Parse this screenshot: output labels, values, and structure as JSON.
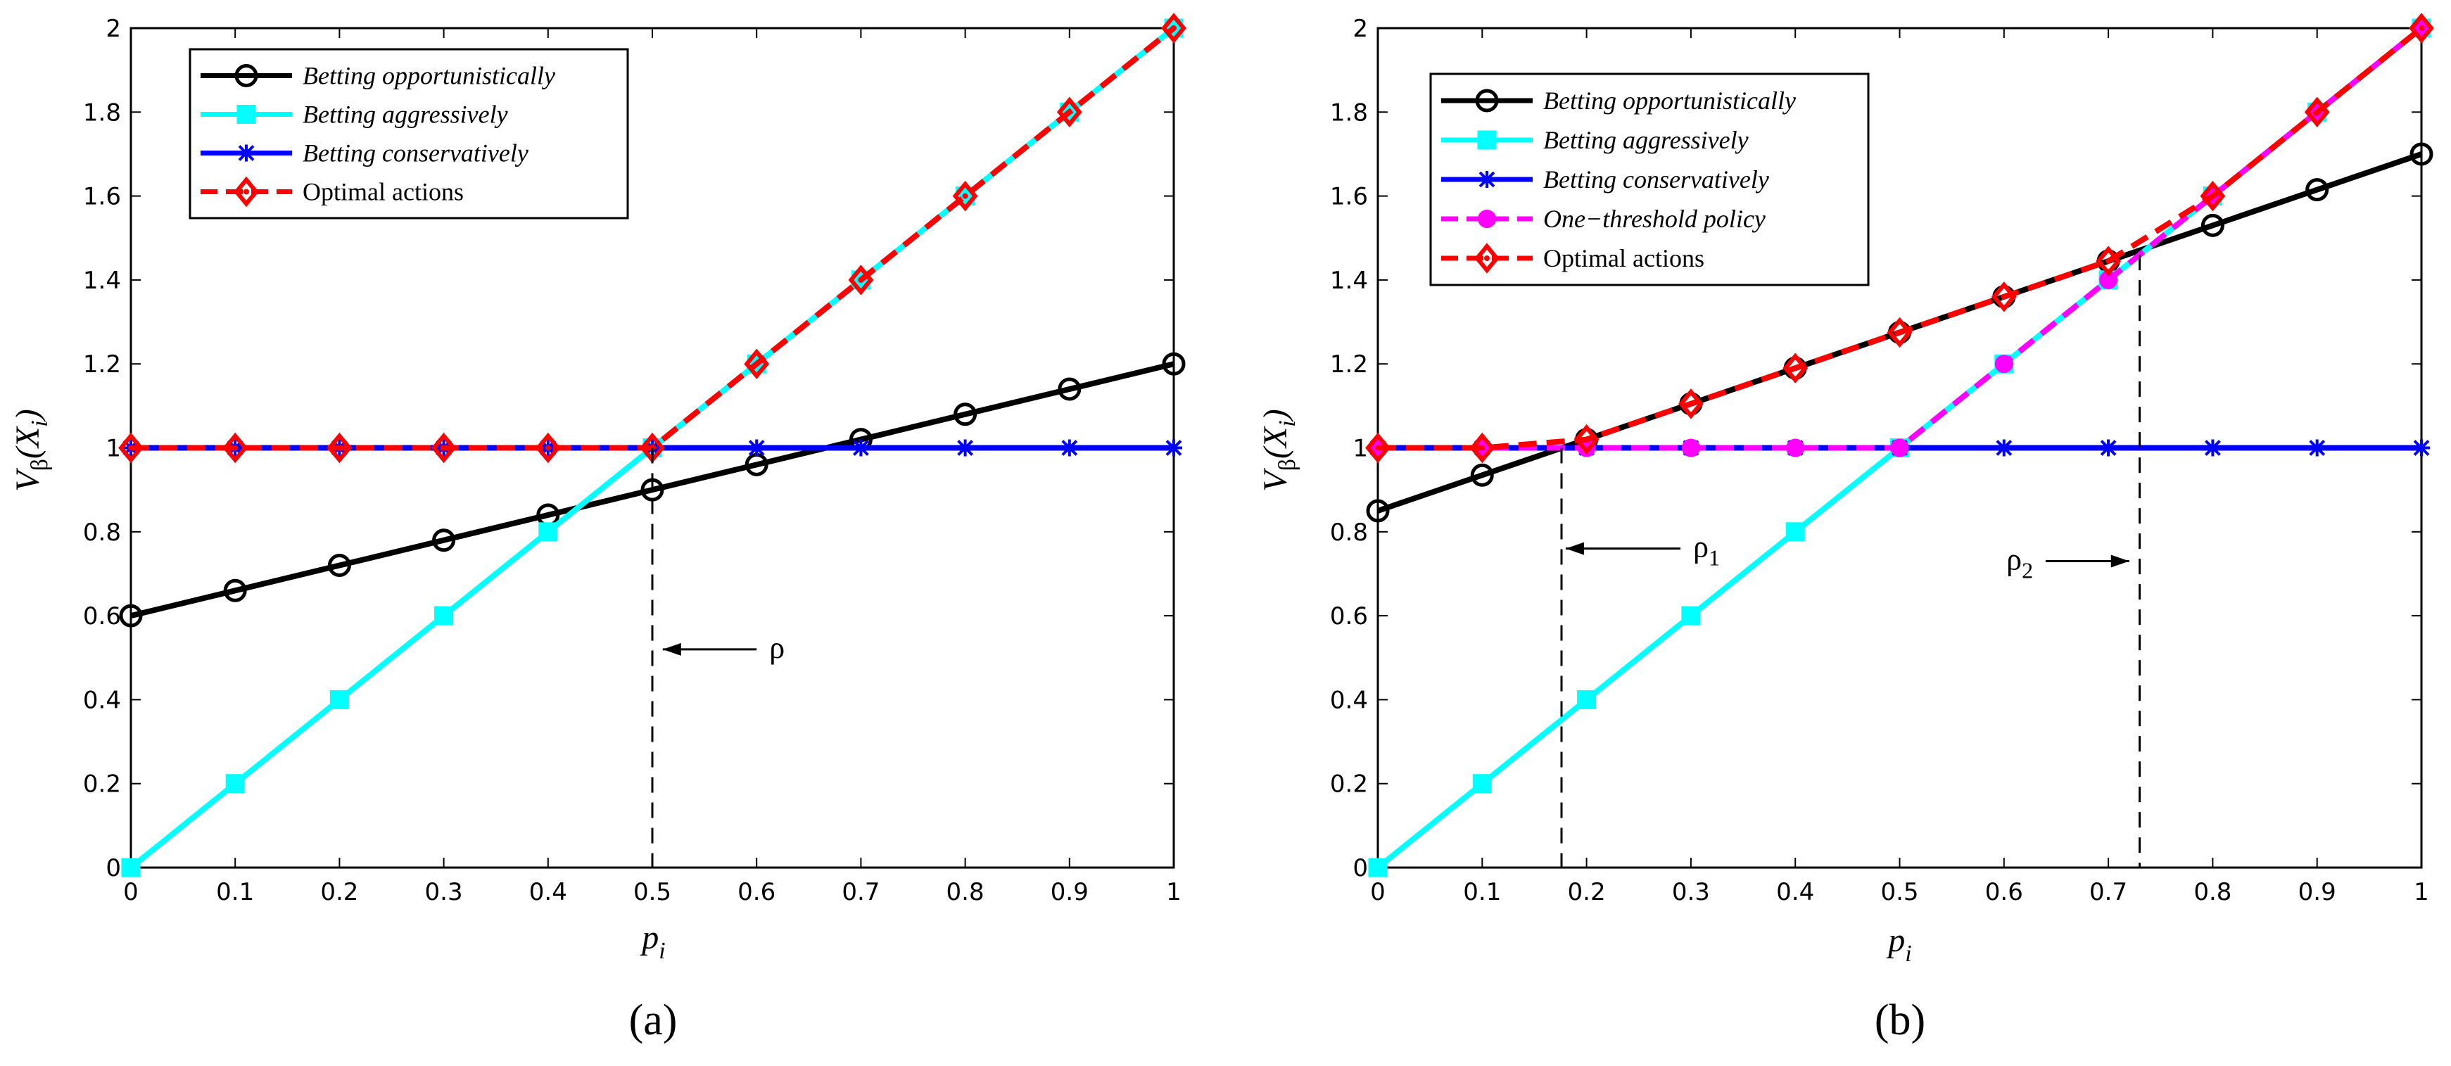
{
  "chart_data": [
    {
      "type": "line",
      "caption": "(a)",
      "xlabel": "p_i",
      "ylabel": "V_β(X_i)",
      "xlim": [
        0,
        1
      ],
      "ylim": [
        0,
        2
      ],
      "xticks": [
        "0",
        "0.1",
        "0.2",
        "0.3",
        "0.4",
        "0.5",
        "0.6",
        "0.7",
        "0.8",
        "0.9",
        "1"
      ],
      "yticks": [
        "0",
        "0.2",
        "0.4",
        "0.6",
        "0.8",
        "1",
        "1.2",
        "1.4",
        "1.6",
        "1.8",
        "2"
      ],
      "x": [
        0,
        0.1,
        0.2,
        0.3,
        0.4,
        0.5,
        0.6,
        0.7,
        0.8,
        0.9,
        1
      ],
      "series": [
        {
          "name": "Betting opportunistically",
          "italic": true,
          "color": "#000000",
          "marker": "circle",
          "dash": false,
          "values": [
            0.6,
            0.66,
            0.72,
            0.78,
            0.84,
            0.9,
            0.96,
            1.02,
            1.08,
            1.14,
            1.2
          ]
        },
        {
          "name": "Betting aggressively",
          "italic": true,
          "color": "#00ffff",
          "marker": "square",
          "dash": false,
          "values": [
            0,
            0.2,
            0.4,
            0.6,
            0.8,
            1.0,
            1.2,
            1.4,
            1.6,
            1.8,
            2.0
          ]
        },
        {
          "name": "Betting conservatively",
          "italic": true,
          "color": "#0000ff",
          "marker": "star",
          "dash": false,
          "values": [
            1,
            1,
            1,
            1,
            1,
            1,
            1,
            1,
            1,
            1,
            1
          ]
        },
        {
          "name": "Optimal actions",
          "italic": false,
          "color": "#ff0000",
          "marker": "diamond",
          "dash": true,
          "values": [
            1,
            1,
            1,
            1,
            1,
            1,
            1.2,
            1.4,
            1.6,
            1.8,
            2.0
          ]
        }
      ],
      "thresholds": [
        {
          "label": "ρ",
          "sub": "",
          "x": 0.5,
          "y_top": 1.0,
          "label_x": 0.61,
          "label_y": 0.52,
          "arrow_from_x": 0.6,
          "arrow_to_x": 0.51
        }
      ]
    },
    {
      "type": "line",
      "caption": "(b)",
      "xlabel": "p_i",
      "ylabel": "V_β(X_i)",
      "xlim": [
        0,
        1
      ],
      "ylim": [
        0,
        2
      ],
      "xticks": [
        "0",
        "0.1",
        "0.2",
        "0.3",
        "0.4",
        "0.5",
        "0.6",
        "0.7",
        "0.8",
        "0.9",
        "1"
      ],
      "yticks": [
        "0",
        "0.2",
        "0.4",
        "0.6",
        "0.8",
        "1",
        "1.2",
        "1.4",
        "1.6",
        "1.8",
        "2"
      ],
      "x": [
        0,
        0.1,
        0.2,
        0.3,
        0.4,
        0.5,
        0.6,
        0.7,
        0.8,
        0.9,
        1
      ],
      "series": [
        {
          "name": "Betting opportunistically",
          "italic": true,
          "color": "#000000",
          "marker": "circle",
          "dash": false,
          "values": [
            0.85,
            0.935,
            1.02,
            1.105,
            1.19,
            1.275,
            1.36,
            1.445,
            1.53,
            1.615,
            1.7
          ]
        },
        {
          "name": "Betting aggressively",
          "italic": true,
          "color": "#00ffff",
          "marker": "square",
          "dash": false,
          "values": [
            0,
            0.2,
            0.4,
            0.6,
            0.8,
            1.0,
            1.2,
            1.4,
            1.6,
            1.8,
            2.0
          ]
        },
        {
          "name": "Betting conservatively",
          "italic": true,
          "color": "#0000ff",
          "marker": "star",
          "dash": false,
          "values": [
            1,
            1,
            1,
            1,
            1,
            1,
            1,
            1,
            1,
            1,
            1
          ]
        },
        {
          "name": "One−threshold policy",
          "italic": true,
          "color": "#ff00ff",
          "marker": "dot",
          "dash": true,
          "values": [
            1,
            1,
            1,
            1,
            1,
            1,
            1.2,
            1.4,
            1.6,
            1.8,
            2.0
          ]
        },
        {
          "name": "Optimal actions",
          "italic": false,
          "color": "#ff0000",
          "marker": "diamond",
          "dash": true,
          "values": [
            1,
            1,
            1.02,
            1.105,
            1.19,
            1.275,
            1.36,
            1.445,
            1.6,
            1.8,
            2.0
          ]
        }
      ],
      "thresholds": [
        {
          "label": "ρ",
          "sub": "1",
          "x": 0.176,
          "y_top": 1.0,
          "label_x": 0.3,
          "label_y": 0.76,
          "arrow_from_x": 0.29,
          "arrow_to_x": 0.18
        },
        {
          "label": "ρ",
          "sub": "2",
          "x": 0.73,
          "y_top": 1.46,
          "label_x": 0.6,
          "label_y": 0.73,
          "arrow_from_x": 0.64,
          "arrow_to_x": 0.72
        }
      ]
    }
  ]
}
